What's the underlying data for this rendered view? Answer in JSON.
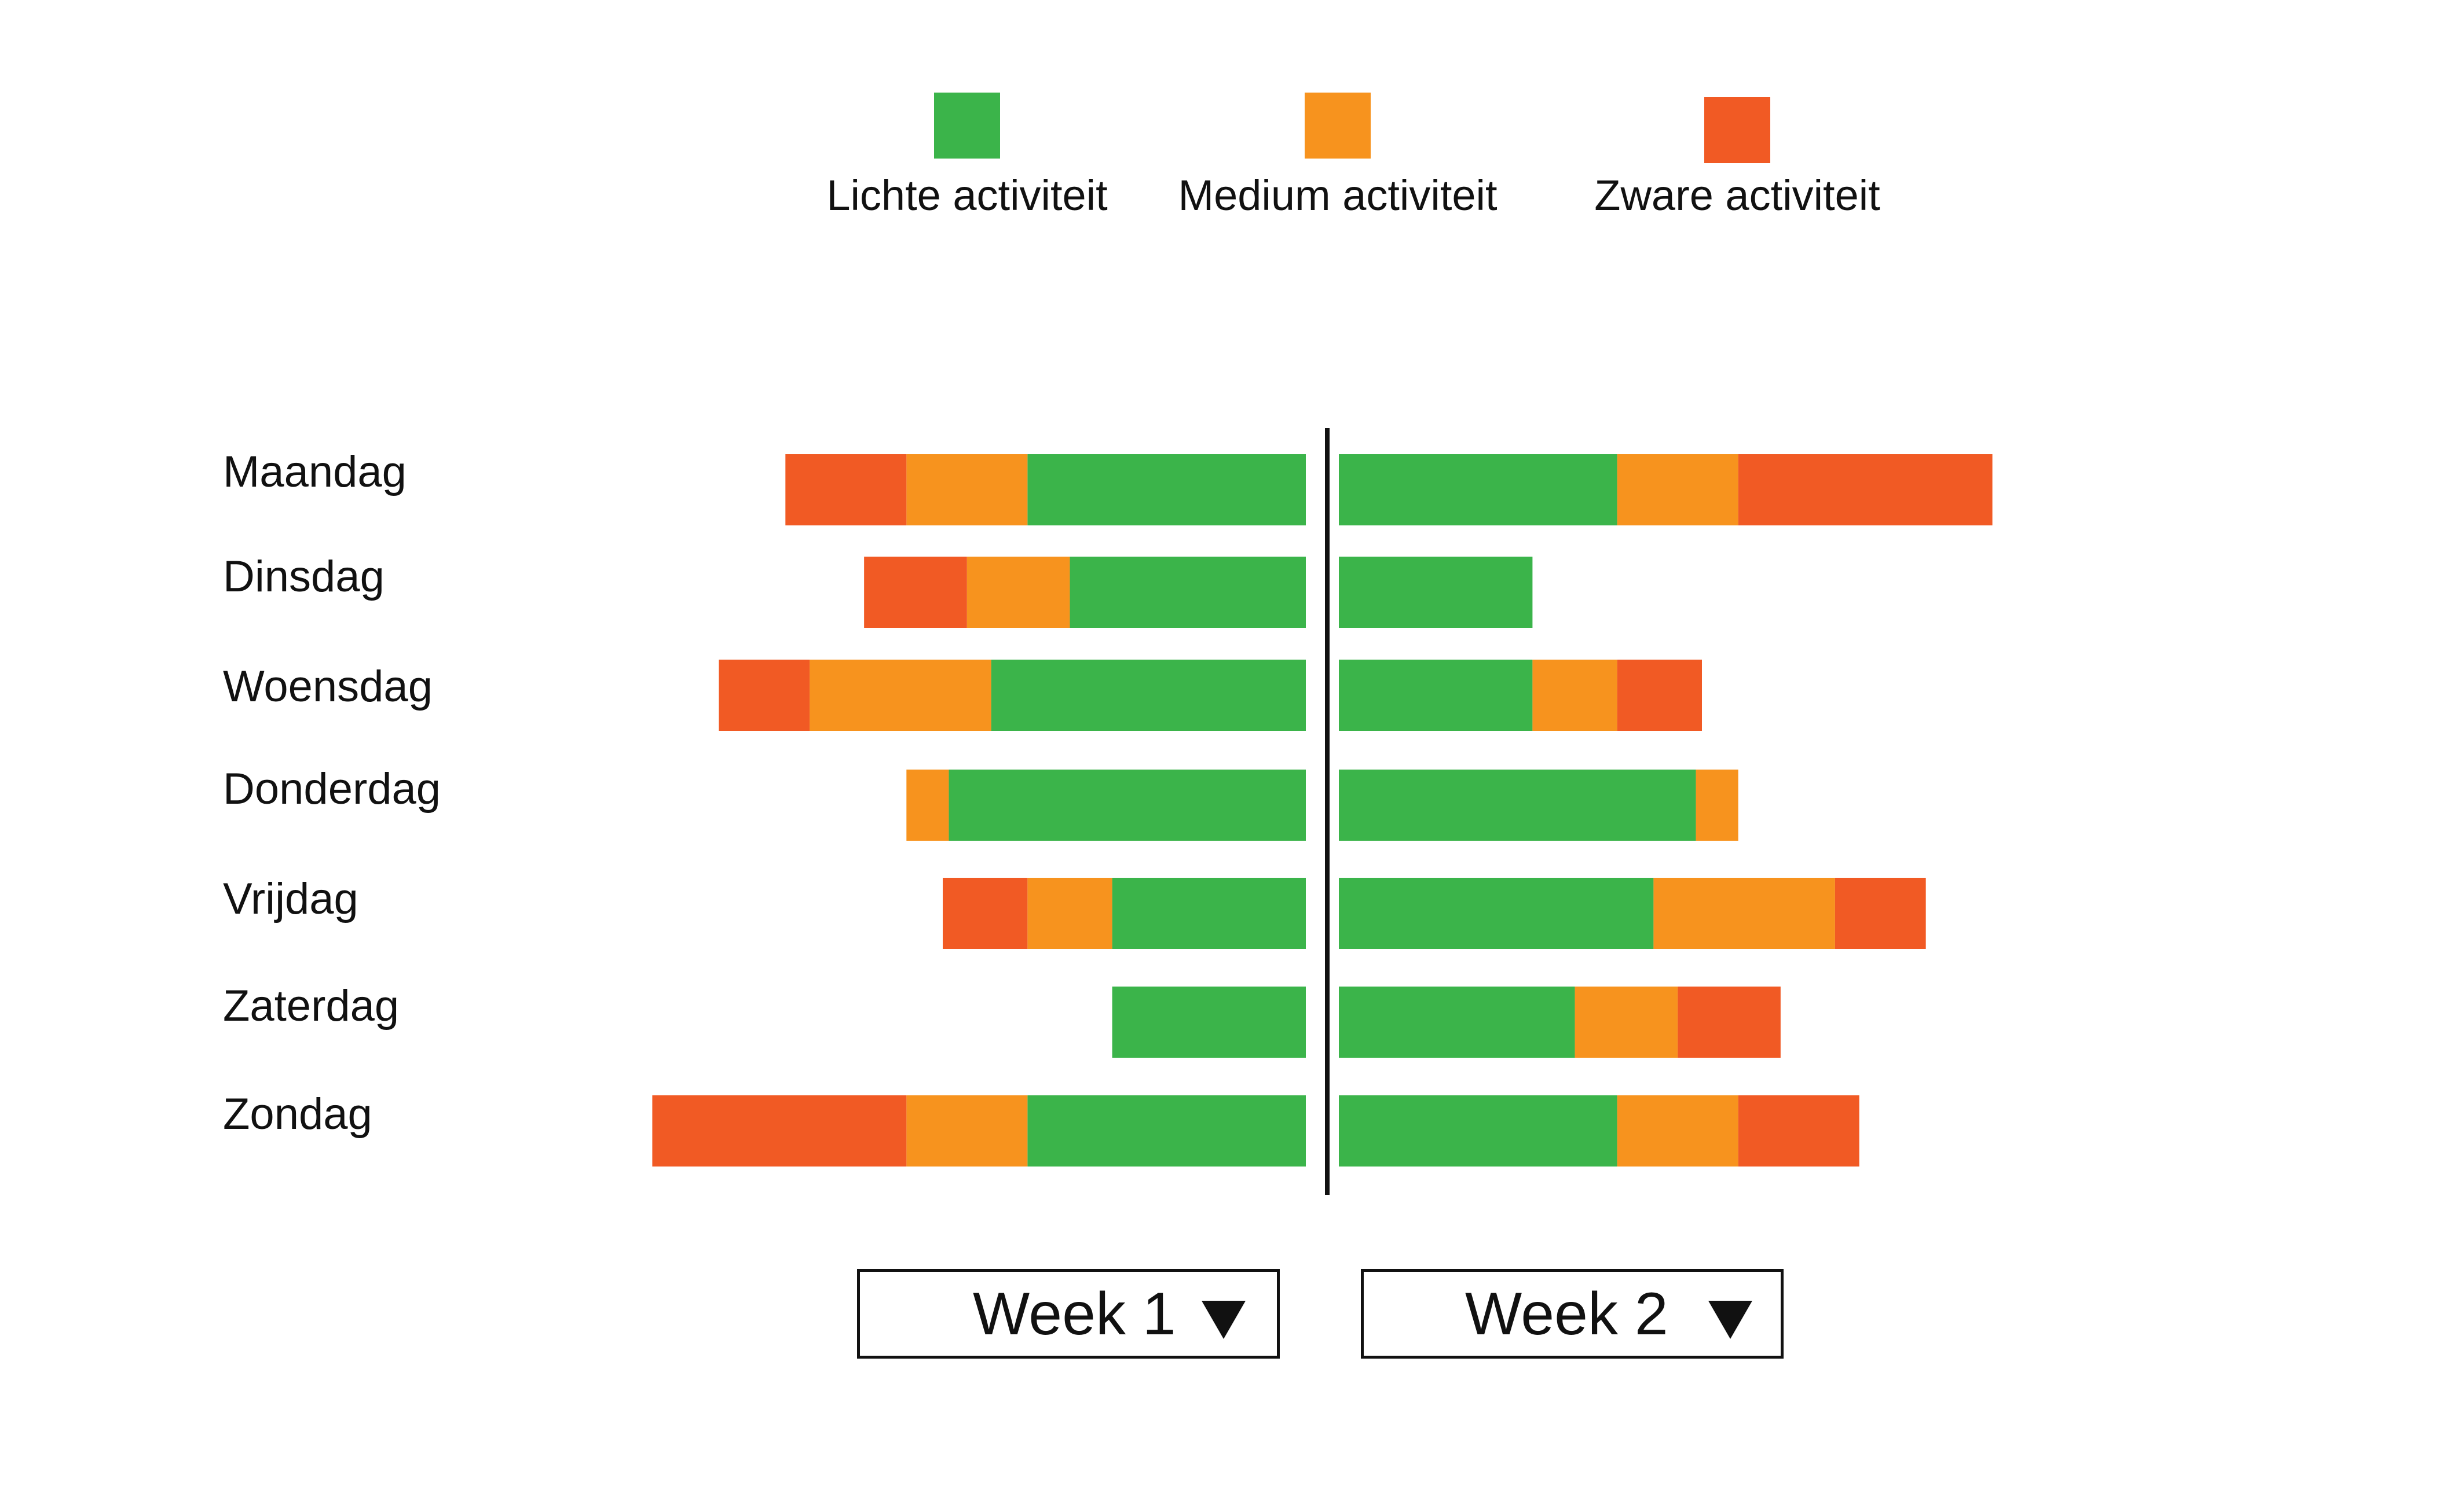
{
  "legend": [
    {
      "key": "light",
      "label": "Lichte activiteit",
      "color": "#3bb44a"
    },
    {
      "key": "medium",
      "label": "Medium activiteit",
      "color": "#f7931e"
    },
    {
      "key": "heavy",
      "label": "Zware activiteit",
      "color": "#f15a24"
    }
  ],
  "chart_data": {
    "type": "bar",
    "categories": [
      "Maandag",
      "Dinsdag",
      "Woensdag",
      "Donderdag",
      "Vrijdag",
      "Zaterdag",
      "Zondag"
    ],
    "series": [
      {
        "name": "Lichte activiteit",
        "color": "#3bb44a",
        "week1": [
          4.6,
          3.9,
          5.2,
          5.9,
          3.2,
          3.2,
          4.6
        ],
        "week2": [
          4.6,
          3.2,
          3.2,
          5.9,
          5.2,
          3.9,
          4.6
        ]
      },
      {
        "name": "Medium activiteit",
        "color": "#f7931e",
        "week1": [
          2.0,
          1.7,
          3.0,
          0.7,
          1.4,
          0,
          2.0
        ],
        "week2": [
          2.0,
          0,
          1.4,
          0.7,
          3.0,
          1.7,
          2.0
        ]
      },
      {
        "name": "Zware activiteit",
        "color": "#f15a24",
        "week1": [
          2.0,
          1.7,
          1.5,
          0,
          1.4,
          0,
          4.2
        ],
        "week2": [
          4.2,
          0,
          1.4,
          0,
          1.5,
          1.7,
          2.0
        ]
      }
    ],
    "weeks": [
      "Week 1",
      "Week 2"
    ],
    "xlim": [
      0,
      11.2
    ],
    "grid": false,
    "legend_position": "top"
  },
  "controls": {
    "week1_label": "Week 1",
    "week2_label": "Week 2",
    "dropdown_icon": "triangle-down-icon"
  }
}
